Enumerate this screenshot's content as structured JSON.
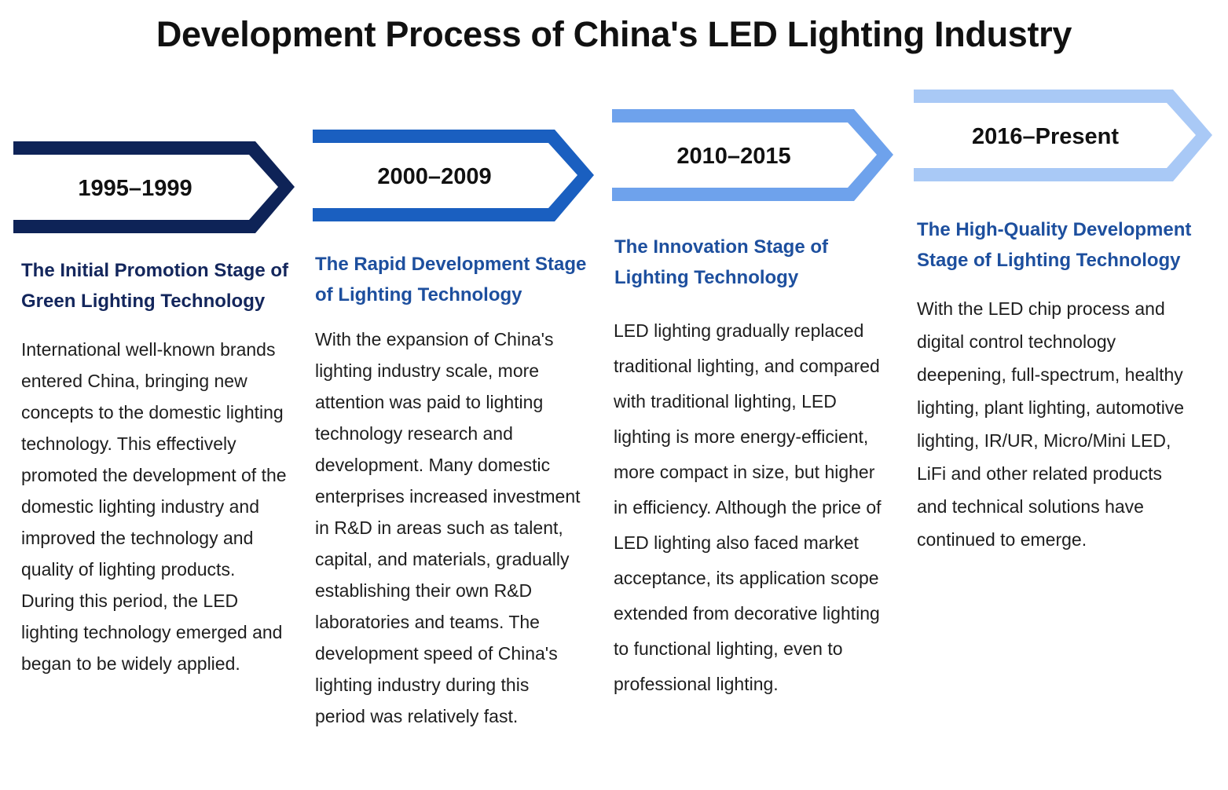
{
  "title": "Development Process of China's LED Lighting Industry",
  "stages": [
    {
      "period": "1995–1999",
      "color": "#0e2357",
      "heading_color": "#13265c",
      "heading": "The Initial Promotion Stage of Green Lighting Technology",
      "description": "International well-known brands entered China, bringing new concepts to the domestic lighting technology. This effectively promoted the development of the domestic lighting industry and improved the technology and quality of lighting products. During this period, the LED lighting technology emerged and began to be widely applied."
    },
    {
      "period": "2000–2009",
      "color": "#1a5fc0",
      "heading_color": "#1d4f9e",
      "heading": "The Rapid Development Stage of Lighting Technology",
      "description": "With the expansion of China's lighting industry scale, more attention was paid to lighting technology research and development. Many domestic enterprises increased investment in R&D in areas such as talent, capital, and materials, gradually establishing their own R&D laboratories and teams. The development speed of China's lighting industry during this period was relatively fast."
    },
    {
      "period": "2010–2015",
      "color": "#6ea2ec",
      "heading_color": "#1d4f9e",
      "heading": "The Innovation Stage of Lighting Technology",
      "description": "LED lighting gradually replaced traditional lighting, and compared with traditional lighting, LED lighting is more energy-efficient, more compact in size, but higher in efficiency. Although the price of LED lighting also faced market acceptance, its application scope extended from decorative lighting to functional lighting, even to professional lighting."
    },
    {
      "period": "2016–Present",
      "color": "#a9c9f6",
      "heading_color": "#1d4f9e",
      "heading": "The High-Quality Development Stage of Lighting Technology",
      "description": "With the LED chip process and digital control technology deepening, full-spectrum, healthy lighting, plant lighting, automotive lighting, IR/UR, Micro/Mini LED, LiFi and other related products and technical solutions have continued to emerge."
    }
  ]
}
